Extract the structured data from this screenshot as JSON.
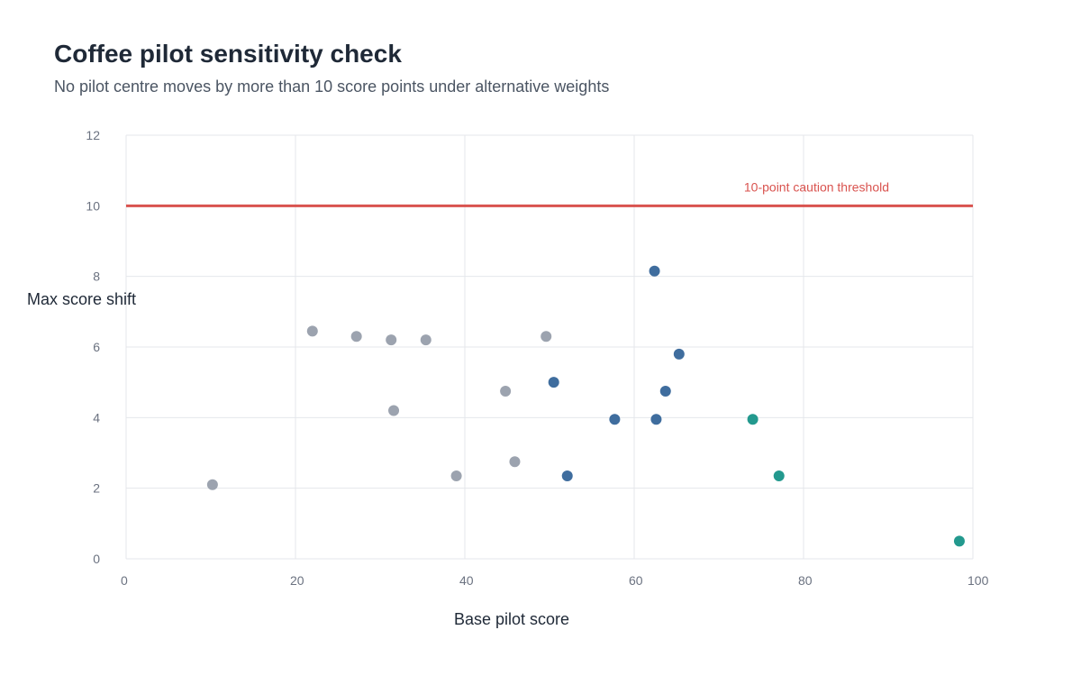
{
  "chart_data": {
    "type": "scatter",
    "title": "Coffee pilot sensitivity check",
    "subtitle": "No pilot centre moves by more than 10 score points under alternative weights",
    "xlabel": "Base pilot score",
    "ylabel": "Max score shift",
    "xlim": [
      0,
      100
    ],
    "ylim": [
      0,
      12
    ],
    "xticks": [
      0,
      20,
      40,
      60,
      80,
      100
    ],
    "yticks": [
      0,
      2,
      4,
      6,
      8,
      10,
      12
    ],
    "grid": true,
    "threshold": {
      "y": 10,
      "label": "10-point caution threshold",
      "color": "#d9534f"
    },
    "colors": {
      "grey": "#9ca3af",
      "blue": "#3f6d9e",
      "teal": "#23998e"
    },
    "points": [
      {
        "x": 10.2,
        "y": 2.1,
        "group": "grey"
      },
      {
        "x": 22.0,
        "y": 6.45,
        "group": "grey"
      },
      {
        "x": 27.2,
        "y": 6.3,
        "group": "grey"
      },
      {
        "x": 31.3,
        "y": 6.2,
        "group": "grey"
      },
      {
        "x": 35.4,
        "y": 6.2,
        "group": "grey"
      },
      {
        "x": 31.6,
        "y": 4.2,
        "group": "grey"
      },
      {
        "x": 39.0,
        "y": 2.35,
        "group": "grey"
      },
      {
        "x": 44.8,
        "y": 4.75,
        "group": "grey"
      },
      {
        "x": 45.9,
        "y": 2.75,
        "group": "grey"
      },
      {
        "x": 49.6,
        "y": 6.3,
        "group": "grey"
      },
      {
        "x": 50.5,
        "y": 5.0,
        "group": "blue"
      },
      {
        "x": 52.1,
        "y": 2.35,
        "group": "blue"
      },
      {
        "x": 57.7,
        "y": 3.95,
        "group": "blue"
      },
      {
        "x": 62.4,
        "y": 8.15,
        "group": "blue"
      },
      {
        "x": 62.6,
        "y": 3.95,
        "group": "blue"
      },
      {
        "x": 63.7,
        "y": 4.75,
        "group": "blue"
      },
      {
        "x": 65.3,
        "y": 5.8,
        "group": "blue"
      },
      {
        "x": 74.0,
        "y": 3.95,
        "group": "teal"
      },
      {
        "x": 77.1,
        "y": 2.35,
        "group": "teal"
      },
      {
        "x": 98.4,
        "y": 0.5,
        "group": "teal"
      }
    ]
  }
}
